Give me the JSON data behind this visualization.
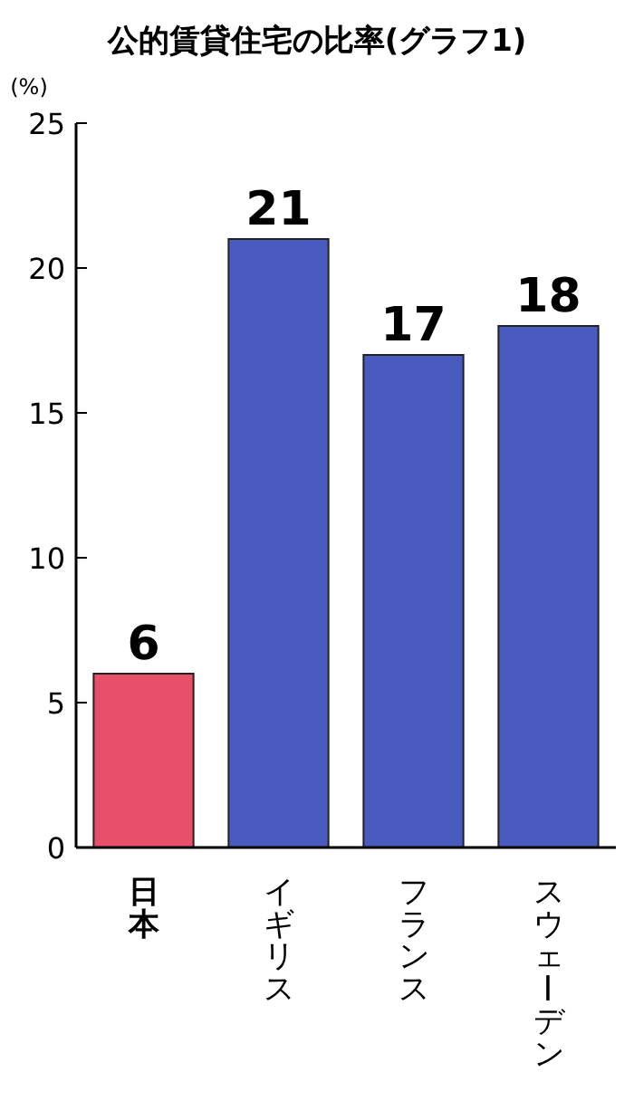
{
  "chart_data": {
    "type": "bar",
    "title": "公的賃貸住宅の比率(グラフ1)",
    "ylabel": "(%)",
    "categories": [
      "日本",
      "イギリス",
      "フランス",
      "スウェーデン"
    ],
    "values": [
      6,
      21,
      17,
      18
    ],
    "colors": [
      "#e8506a",
      "#4a5bc0",
      "#4a5bc0",
      "#4a5bc0"
    ],
    "ylim": [
      0,
      25
    ],
    "yticks": [
      0,
      5,
      10,
      15,
      20,
      25
    ],
    "data_labels": true
  }
}
